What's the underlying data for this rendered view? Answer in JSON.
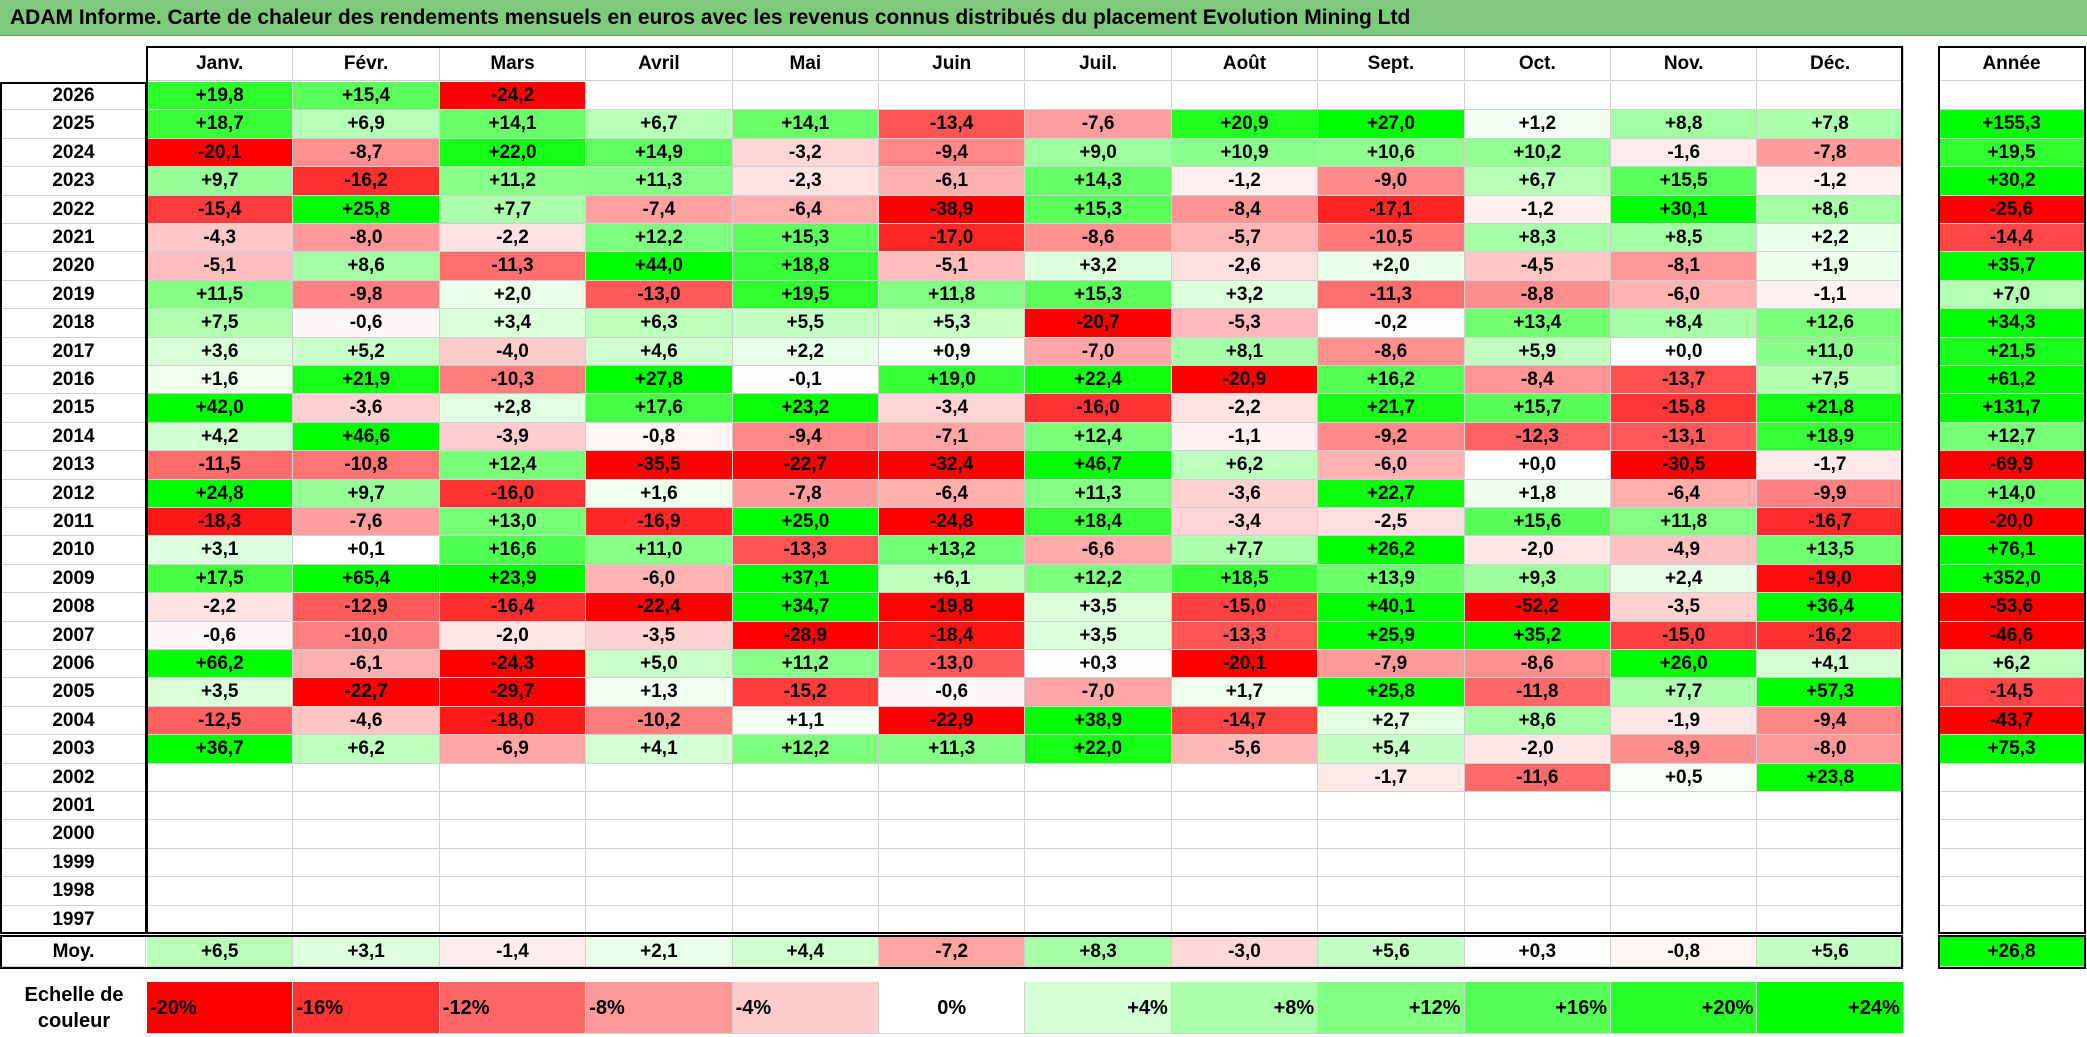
{
  "title": "ADAM Informe. Carte de chaleur des rendements mensuels en euros avec les revenus connus distribués du placement Evolution Mining Ltd",
  "chart_data": {
    "type": "heatmap",
    "title": "ADAM Informe. Carte de chaleur des rendements mensuels en euros avec les revenus connus distribués du placement Evolution Mining Ltd",
    "months": [
      "Janv.",
      "Févr.",
      "Mars",
      "Avril",
      "Mai",
      "Juin",
      "Juil.",
      "Août",
      "Sept.",
      "Oct.",
      "Nov.",
      "Déc."
    ],
    "year_header": "Année",
    "avg_label": "Moy.",
    "rows": [
      {
        "year": "2026",
        "values": [
          "+19,8",
          "+15,4",
          "-24,2",
          "",
          "",
          "",
          "",
          "",
          "",
          "",
          "",
          ""
        ],
        "annual": ""
      },
      {
        "year": "2025",
        "values": [
          "+18,7",
          "+6,9",
          "+14,1",
          "+6,7",
          "+14,1",
          "-13,4",
          "-7,6",
          "+20,9",
          "+27,0",
          "+1,2",
          "+8,8",
          "+7,8"
        ],
        "annual": "+155,3"
      },
      {
        "year": "2024",
        "values": [
          "-20,1",
          "-8,7",
          "+22,0",
          "+14,9",
          "-3,2",
          "-9,4",
          "+9,0",
          "+10,9",
          "+10,6",
          "+10,2",
          "-1,6",
          "-7,8"
        ],
        "annual": "+19,5"
      },
      {
        "year": "2023",
        "values": [
          "+9,7",
          "-16,2",
          "+11,2",
          "+11,3",
          "-2,3",
          "-6,1",
          "+14,3",
          "-1,2",
          "-9,0",
          "+6,7",
          "+15,5",
          "-1,2"
        ],
        "annual": "+30,2"
      },
      {
        "year": "2022",
        "values": [
          "-15,4",
          "+25,8",
          "+7,7",
          "-7,4",
          "-6,4",
          "-38,9",
          "+15,3",
          "-8,4",
          "-17,1",
          "-1,2",
          "+30,1",
          "+8,6"
        ],
        "annual": "-25,6"
      },
      {
        "year": "2021",
        "values": [
          "-4,3",
          "-8,0",
          "-2,2",
          "+12,2",
          "+15,3",
          "-17,0",
          "-8,6",
          "-5,7",
          "-10,5",
          "+8,3",
          "+8,5",
          "+2,2"
        ],
        "annual": "-14,4"
      },
      {
        "year": "2020",
        "values": [
          "-5,1",
          "+8,6",
          "-11,3",
          "+44,0",
          "+18,8",
          "-5,1",
          "+3,2",
          "-2,6",
          "+2,0",
          "-4,5",
          "-8,1",
          "+1,9"
        ],
        "annual": "+35,7"
      },
      {
        "year": "2019",
        "values": [
          "+11,5",
          "-9,8",
          "+2,0",
          "-13,0",
          "+19,5",
          "+11,8",
          "+15,3",
          "+3,2",
          "-11,3",
          "-8,8",
          "-6,0",
          "-1,1"
        ],
        "annual": "+7,0"
      },
      {
        "year": "2018",
        "values": [
          "+7,5",
          "-0,6",
          "+3,4",
          "+6,3",
          "+5,5",
          "+5,3",
          "-20,7",
          "-5,3",
          "-0,2",
          "+13,4",
          "+8,4",
          "+12,6"
        ],
        "annual": "+34,3"
      },
      {
        "year": "2017",
        "values": [
          "+3,6",
          "+5,2",
          "-4,0",
          "+4,6",
          "+2,2",
          "+0,9",
          "-7,0",
          "+8,1",
          "-8,6",
          "+5,9",
          "+0,0",
          "+11,0"
        ],
        "annual": "+21,5"
      },
      {
        "year": "2016",
        "values": [
          "+1,6",
          "+21,9",
          "-10,3",
          "+27,8",
          "-0,1",
          "+19,0",
          "+22,4",
          "-20,9",
          "+16,2",
          "-8,4",
          "-13,7",
          "+7,5"
        ],
        "annual": "+61,2"
      },
      {
        "year": "2015",
        "values": [
          "+42,0",
          "-3,6",
          "+2,8",
          "+17,6",
          "+23,2",
          "-3,4",
          "-16,0",
          "-2,2",
          "+21,7",
          "+15,7",
          "-15,8",
          "+21,8"
        ],
        "annual": "+131,7"
      },
      {
        "year": "2014",
        "values": [
          "+4,2",
          "+46,6",
          "-3,9",
          "-0,8",
          "-9,4",
          "-7,1",
          "+12,4",
          "-1,1",
          "-9,2",
          "-12,3",
          "-13,1",
          "+18,9"
        ],
        "annual": "+12,7"
      },
      {
        "year": "2013",
        "values": [
          "-11,5",
          "-10,8",
          "+12,4",
          "-35,5",
          "-22,7",
          "-32,4",
          "+46,7",
          "+6,2",
          "-6,0",
          "+0,0",
          "-30,5",
          "-1,7"
        ],
        "annual": "-69,9"
      },
      {
        "year": "2012",
        "values": [
          "+24,8",
          "+9,7",
          "-16,0",
          "+1,6",
          "-7,8",
          "-6,4",
          "+11,3",
          "-3,6",
          "+22,7",
          "+1,8",
          "-6,4",
          "-9,9"
        ],
        "annual": "+14,0"
      },
      {
        "year": "2011",
        "values": [
          "-18,3",
          "-7,6",
          "+13,0",
          "-16,9",
          "+25,0",
          "-24,8",
          "+18,4",
          "-3,4",
          "-2,5",
          "+15,6",
          "+11,8",
          "-16,7"
        ],
        "annual": "-20,0"
      },
      {
        "year": "2010",
        "values": [
          "+3,1",
          "+0,1",
          "+16,6",
          "+11,0",
          "-13,3",
          "+13,2",
          "-6,6",
          "+7,7",
          "+26,2",
          "-2,0",
          "-4,9",
          "+13,5"
        ],
        "annual": "+76,1"
      },
      {
        "year": "2009",
        "values": [
          "+17,5",
          "+65,4",
          "+23,9",
          "-6,0",
          "+37,1",
          "+6,1",
          "+12,2",
          "+18,5",
          "+13,9",
          "+9,3",
          "+2,4",
          "-19,0"
        ],
        "annual": "+352,0"
      },
      {
        "year": "2008",
        "values": [
          "-2,2",
          "-12,9",
          "-16,4",
          "-22,4",
          "+34,7",
          "-19,8",
          "+3,5",
          "-15,0",
          "+40,1",
          "-52,2",
          "-3,5",
          "+36,4"
        ],
        "annual": "-53,6"
      },
      {
        "year": "2007",
        "values": [
          "-0,6",
          "-10,0",
          "-2,0",
          "-3,5",
          "-28,9",
          "-18,4",
          "+3,5",
          "-13,3",
          "+25,9",
          "+35,2",
          "-15,0",
          "-16,2"
        ],
        "annual": "-46,6"
      },
      {
        "year": "2006",
        "values": [
          "+66,2",
          "-6,1",
          "-24,3",
          "+5,0",
          "+11,2",
          "-13,0",
          "+0,3",
          "-20,1",
          "-7,9",
          "-8,6",
          "+26,0",
          "+4,1"
        ],
        "annual": "+6,2"
      },
      {
        "year": "2005",
        "values": [
          "+3,5",
          "-22,7",
          "-29,7",
          "+1,3",
          "-15,2",
          "-0,6",
          "-7,0",
          "+1,7",
          "+25,8",
          "-11,8",
          "+7,7",
          "+57,3"
        ],
        "annual": "-14,5"
      },
      {
        "year": "2004",
        "values": [
          "-12,5",
          "-4,6",
          "-18,0",
          "-10,2",
          "+1,1",
          "-22,9",
          "+38,9",
          "-14,7",
          "+2,7",
          "+8,6",
          "-1,9",
          "-9,4"
        ],
        "annual": "-43,7"
      },
      {
        "year": "2003",
        "values": [
          "+36,7",
          "+6,2",
          "-6,9",
          "+4,1",
          "+12,2",
          "+11,3",
          "+22,0",
          "-5,6",
          "+5,4",
          "-2,0",
          "-8,9",
          "-8,0"
        ],
        "annual": "+75,3"
      },
      {
        "year": "2002",
        "values": [
          "",
          "",
          "",
          "",
          "",
          "",
          "",
          "",
          "-1,7",
          "-11,6",
          "+0,5",
          "+23,8"
        ],
        "annual": ""
      },
      {
        "year": "2001",
        "values": [
          "",
          "",
          "",
          "",
          "",
          "",
          "",
          "",
          "",
          "",
          "",
          ""
        ],
        "annual": ""
      },
      {
        "year": "2000",
        "values": [
          "",
          "",
          "",
          "",
          "",
          "",
          "",
          "",
          "",
          "",
          "",
          ""
        ],
        "annual": ""
      },
      {
        "year": "1999",
        "values": [
          "",
          "",
          "",
          "",
          "",
          "",
          "",
          "",
          "",
          "",
          "",
          ""
        ],
        "annual": ""
      },
      {
        "year": "1998",
        "values": [
          "",
          "",
          "",
          "",
          "",
          "",
          "",
          "",
          "",
          "",
          "",
          ""
        ],
        "annual": ""
      },
      {
        "year": "1997",
        "values": [
          "",
          "",
          "",
          "",
          "",
          "",
          "",
          "",
          "",
          "",
          "",
          ""
        ],
        "annual": ""
      }
    ],
    "averages": [
      "+6,5",
      "+3,1",
      "-1,4",
      "+2,1",
      "+4,4",
      "-7,2",
      "+8,3",
      "-3,0",
      "+5,6",
      "+0,3",
      "-0,8",
      "+5,6"
    ],
    "annual_average": "+26,8",
    "color_scale": {
      "title": "Echelle de couleur",
      "labels": [
        "-20%",
        "-16%",
        "-12%",
        "-8%",
        "-4%",
        "0%",
        "+4%",
        "+8%",
        "+12%",
        "+16%",
        "+20%",
        "+24%"
      ],
      "values": [
        -20,
        -16,
        -12,
        -8,
        -4,
        0,
        4,
        8,
        12,
        16,
        20,
        24
      ]
    },
    "colors": {
      "negative_max": "#ff0000",
      "positive_max": "#00ff00",
      "neutral": "#ffffff",
      "title_bar": "#7fc97f"
    }
  }
}
